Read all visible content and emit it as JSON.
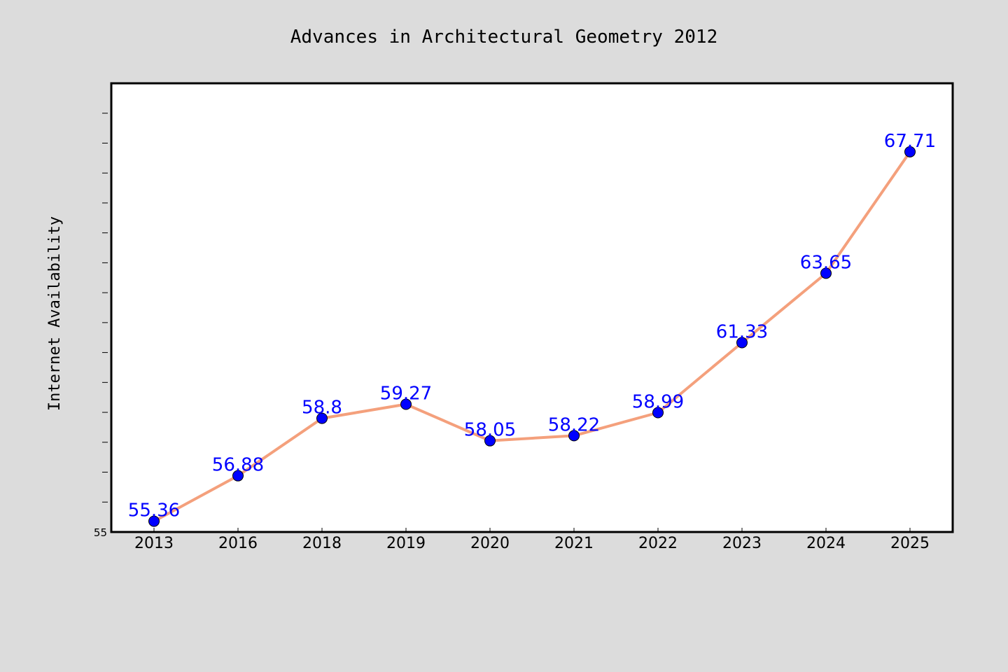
{
  "colors": {
    "background": "#dcdcdc",
    "plot_background": "#ffffff",
    "line": "#f4a07c",
    "marker": "#0000ff",
    "data_label": "#0000ff"
  },
  "chart_data": {
    "type": "line",
    "title": "Advances in Architectural Geometry 2012",
    "xlabel": "",
    "ylabel": "Internet Availability",
    "categories": [
      "2013",
      "2016",
      "2018",
      "2019",
      "2020",
      "2021",
      "2022",
      "2023",
      "2024",
      "2025"
    ],
    "series": [
      {
        "values": [
          55.36,
          56.88,
          58.8,
          59.27,
          58.05,
          58.22,
          58.99,
          61.33,
          63.65,
          67.71
        ],
        "labels": [
          "55.36",
          "56.88",
          "58.8",
          "59.27",
          "58.05",
          "58.22",
          "58.99",
          "61.33",
          "63.65",
          "67.71"
        ]
      }
    ],
    "ylim": [
      55,
      70
    ],
    "y_tick_labels": [
      "55"
    ],
    "y_minor_step": 1,
    "grid": false,
    "legend": "none"
  }
}
